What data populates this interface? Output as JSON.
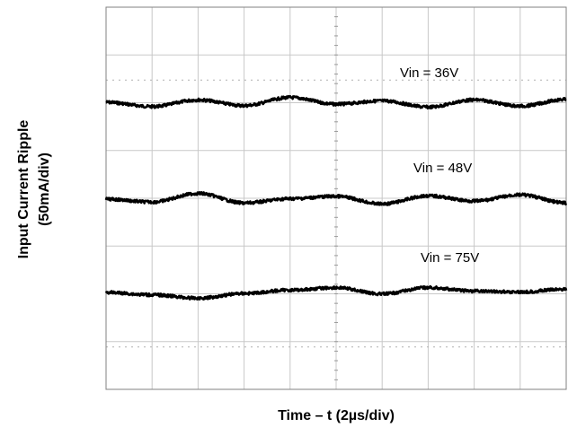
{
  "chart_data": {
    "type": "line",
    "title": "",
    "xlabel": "Time – t (2µs/div)",
    "ylabel_line1": "Input Current Ripple",
    "ylabel_line2": "(50mA/div)",
    "x_divisions": 10,
    "y_divisions": 8,
    "grid": true,
    "x_unit": "µs",
    "y_unit": "mA",
    "x": [
      0,
      2,
      4,
      6,
      8,
      10,
      12,
      14,
      16,
      18,
      20
    ],
    "series": [
      {
        "name": "Vin = 36V",
        "values": [
          0,
          -4.5,
          2.5,
          -3.5,
          5,
          -2,
          1.5,
          -5,
          2.5,
          -4,
          3
        ]
      },
      {
        "name": "Vin = 48V",
        "values": [
          0,
          -3,
          6,
          -4,
          0.5,
          3,
          -5,
          3.5,
          -2,
          4.5,
          -4
        ]
      },
      {
        "name": "Vin = 75V",
        "values": [
          0,
          -2.5,
          -6,
          -1,
          2.5,
          5,
          -1.5,
          5,
          1.5,
          0.5,
          3.5
        ]
      }
    ],
    "colors": {
      "trace": "#000000",
      "grid": "#c8c8c8",
      "frame": "#808080",
      "dotted_marker": "#b0b0b0"
    }
  }
}
